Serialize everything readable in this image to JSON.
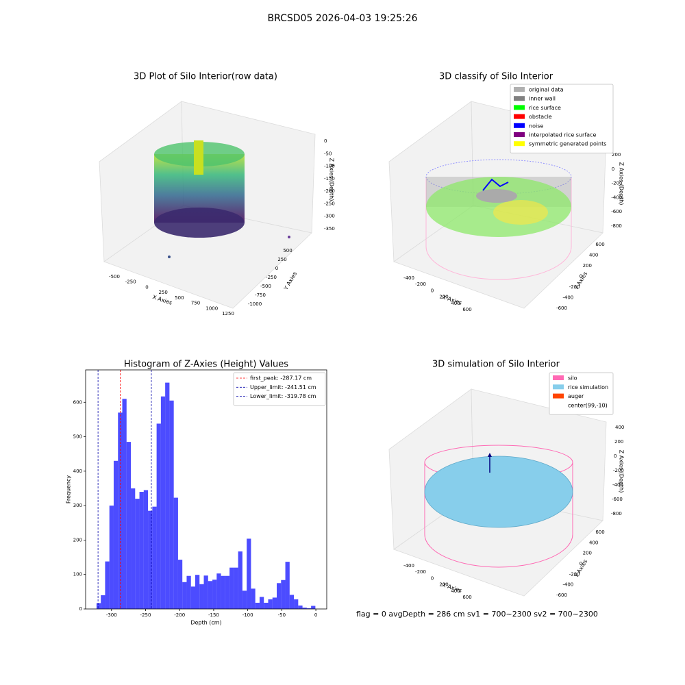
{
  "title": "BRCSD05 2026-04-03 19:25:26",
  "footer": "flag = 0     avgDepth = 286 cm  sv1 = 700~2300  sv2 = 700~2300",
  "chart_data": [
    {
      "type": "scatter3d",
      "title": "3D Plot of Silo Interior(row data)",
      "xlabel": "X Axies",
      "ylabel": "Y Axies",
      "zlabel": "Z Axies (Depth)",
      "xticks": [
        -500,
        -250,
        0,
        250,
        500,
        750,
        1000,
        1250
      ],
      "yticks": [
        -1000,
        -750,
        -500,
        -250,
        0,
        250,
        500
      ],
      "zticks": [
        0,
        -50,
        -100,
        -150,
        -200,
        -250,
        -300,
        -350
      ]
    },
    {
      "type": "scatter3d",
      "title": "3D classify of Silo Interior",
      "xlabel": "X Axies",
      "ylabel": "Y Axies",
      "zlabel": "Z Axies (Depth)",
      "xticks": [
        -400,
        -200,
        0,
        200,
        400,
        600
      ],
      "yticks": [
        -600,
        -400,
        -200,
        0,
        200,
        400,
        600
      ],
      "zticks": [
        200,
        0,
        -200,
        -400,
        -600,
        -800
      ],
      "legend": [
        {
          "name": "original data",
          "color": "#b0b0b0"
        },
        {
          "name": "inner wall",
          "color": "#808080"
        },
        {
          "name": "rice surface",
          "color": "#00ff00"
        },
        {
          "name": "obstacle",
          "color": "#ff0000"
        },
        {
          "name": "noise",
          "color": "#0000ff"
        },
        {
          "name": "interpolated rice surface",
          "color": "#800080"
        },
        {
          "name": "symmetric generated points",
          "color": "#ffff00"
        }
      ]
    },
    {
      "type": "histogram",
      "title": "Histogram of Z-Axies (Height) Values",
      "xlabel": "Depth (cm)",
      "ylabel": "Frequency",
      "color": "#0000ff",
      "alpha": 0.7,
      "xlim": [
        -338,
        16
      ],
      "ylim": [
        0,
        694
      ],
      "xticks": [
        -300,
        -250,
        -200,
        -150,
        -100,
        -50,
        0
      ],
      "yticks": [
        0,
        100,
        200,
        300,
        400,
        500,
        600
      ],
      "bins": [
        -322,
        -315.7,
        -309.4,
        -303.1,
        -296.8,
        -290.5,
        -284.2,
        -277.9,
        -271.6,
        -265.3,
        -259,
        -252.7,
        -246.4,
        -240.1,
        -233.8,
        -227.5,
        -221.2,
        -214.9,
        -208.6,
        -202.3,
        -196,
        -189.7,
        -183.4,
        -177.1,
        -170.8,
        -164.5,
        -158.2,
        -151.9,
        -145.6,
        -139.3,
        -133,
        -126.7,
        -120.4,
        -114.1,
        -107.8,
        -101.5,
        -95.2,
        -88.9,
        -82.6,
        -76.3,
        -70,
        -63.7,
        -57.4,
        -51.1,
        -44.8,
        -38.5,
        -32.2,
        -25.9,
        -19.6,
        -13.3,
        -7,
        -0.7
      ],
      "counts": [
        17,
        40,
        138,
        300,
        430,
        570,
        610,
        485,
        350,
        320,
        340,
        345,
        285,
        297,
        538,
        617,
        657,
        605,
        323,
        143,
        78,
        96,
        65,
        99,
        72,
        97,
        81,
        85,
        103,
        96,
        96,
        120,
        120,
        167,
        53,
        204,
        59,
        18,
        35,
        18,
        28,
        33,
        75,
        84,
        137,
        41,
        28,
        10,
        4,
        2,
        9
      ],
      "lines": [
        {
          "name": "first_peak: -287.17 cm",
          "value": -287.17,
          "color": "#ff0000"
        },
        {
          "name": "Upper_limit: -241.51 cm",
          "value": -241.51,
          "color": "#0000aa"
        },
        {
          "name": "Lower_limit: -319.78 cm",
          "value": -319.78,
          "color": "#0000aa"
        }
      ]
    },
    {
      "type": "surface3d",
      "title": "3D simulation of Silo Interior",
      "xlabel": "X Axies",
      "ylabel": "Y Axies",
      "zlabel": "Z Axies (Depth)",
      "xticks": [
        -400,
        -200,
        0,
        200,
        400,
        600
      ],
      "yticks": [
        -600,
        -400,
        -200,
        0,
        200,
        400,
        600
      ],
      "zticks": [
        400,
        200,
        0,
        -200,
        -400,
        -600,
        -800
      ],
      "legend": [
        {
          "name": "silo",
          "color": "#ff69b4"
        },
        {
          "name": "rice simulation",
          "color": "#87ceeb"
        },
        {
          "name": "auger",
          "color": "#ff4500"
        },
        {
          "name": "center(99,-10)",
          "color": "#ffffff"
        }
      ]
    }
  ]
}
